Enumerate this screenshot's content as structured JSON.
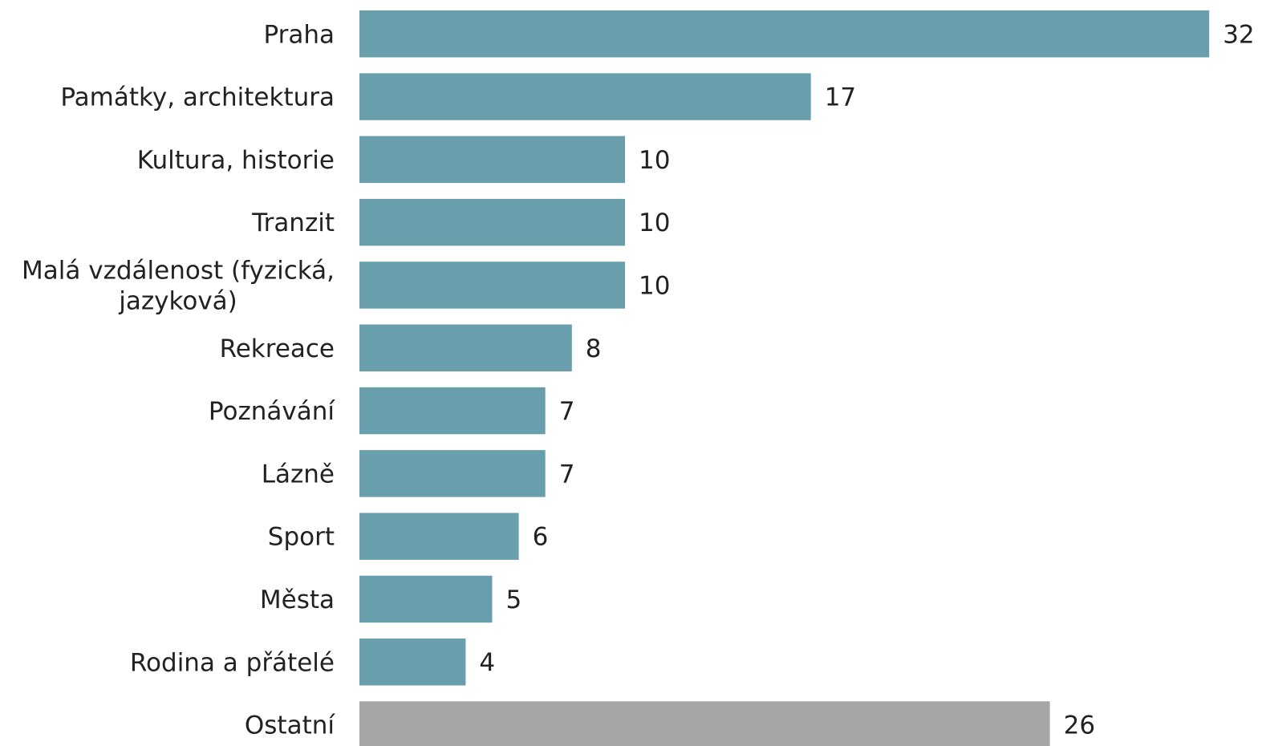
{
  "chart_data": {
    "type": "bar",
    "orientation": "horizontal",
    "categories": [
      "Praha",
      "Památky, architektura",
      "Kultura, historie",
      "Tranzit",
      "Malá vzdálenost (fyzická, jazyková)",
      "Rekreace",
      "Poznávání",
      "Lázně",
      "Sport",
      "Města",
      "Rodina a přátelé",
      "Ostatní"
    ],
    "values": [
      32,
      17,
      10,
      10,
      10,
      8,
      7,
      7,
      6,
      5,
      4,
      26
    ],
    "data_labels": [
      "32",
      "17",
      "10",
      "10",
      "10",
      "8",
      "7",
      "7",
      "6",
      "5",
      "4",
      "26"
    ],
    "colors": {
      "main": "#699fac",
      "other": "#a6a6a6"
    },
    "highlight_category": "Ostatní",
    "xlim": [
      0,
      32
    ],
    "grid": false,
    "legend": "none"
  }
}
